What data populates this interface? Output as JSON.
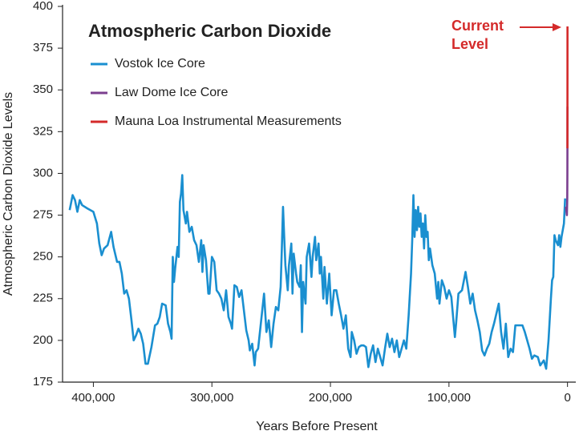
{
  "chart_data": {
    "type": "line",
    "title": "Atmospheric Carbon Dioxide",
    "x_label": "Years Before Present",
    "y_label": "Atmospheric Carbon Dioxide Levels",
    "annotation": [
      "Current",
      "Level"
    ],
    "annotation_color": "#d42a2a",
    "xlim": [
      426000,
      -7000
    ],
    "ylim": [
      175,
      400
    ],
    "xticks": [
      {
        "value": 400000,
        "label": "400,000"
      },
      {
        "value": 300000,
        "label": "300,000"
      },
      {
        "value": 200000,
        "label": "200,000"
      },
      {
        "value": 100000,
        "label": "100,000"
      },
      0
    ],
    "yticks": [
      175,
      200,
      225,
      250,
      275,
      300,
      325,
      350,
      375,
      400
    ],
    "grid": false,
    "legend": "upper left",
    "series": [
      {
        "name": "Vostok Ice Core",
        "color": "#1a8fd0",
        "x": [
          420000,
          417500,
          415500,
          413500,
          411500,
          409500,
          405000,
          400000,
          397000,
          395000,
          393000,
          391000,
          388000,
          385000,
          383000,
          380000,
          378000,
          376000,
          374000,
          372000,
          370000,
          368000,
          366000,
          364000,
          362000,
          360000,
          358000,
          356000,
          354000,
          351000,
          348000,
          346000,
          344000,
          342000,
          339000,
          337000,
          335000,
          334000,
          333000,
          332000,
          331000,
          329000,
          328000,
          327000,
          326000,
          325000,
          324000,
          322000,
          321000,
          319000,
          317000,
          315000,
          313000,
          311000,
          309000,
          308000,
          307000,
          305000,
          303000,
          302000,
          300000,
          298000,
          296000,
          294000,
          292000,
          290000,
          288000,
          286000,
          284000,
          283000,
          281000,
          279000,
          277000,
          275000,
          273000,
          271000,
          269000,
          268000,
          266000,
          264000,
          263000,
          261000,
          256000,
          254000,
          252000,
          250000,
          248000,
          246000,
          244000,
          242000,
          241000,
          240000,
          239000,
          238000,
          236000,
          235000,
          233000,
          232000,
          231000,
          229000,
          228000,
          226000,
          225000,
          224000,
          223000,
          221000,
          220000,
          218000,
          216000,
          215000,
          213000,
          212000,
          210000,
          209000,
          208000,
          206000,
          205000,
          203000,
          201000,
          199000,
          197000,
          195000,
          193000,
          191000,
          189000,
          187000,
          185000,
          183000,
          182000,
          180000,
          178000,
          176000,
          174000,
          172000,
          170000,
          168000,
          166000,
          164000,
          162000,
          160000,
          158000,
          156000,
          154000,
          152000,
          150000,
          148000,
          146000,
          144000,
          142000,
          140000,
          138000,
          136000,
          134000,
          132000,
          131000,
          130000,
          129000,
          128000,
          127000,
          126000,
          125000,
          124000,
          123000,
          122000,
          121000,
          120000,
          119000,
          118000,
          117000,
          116000,
          114000,
          112000,
          110000,
          109000,
          108000,
          106000,
          104000,
          102000,
          100000,
          98000,
          96000,
          95000,
          94000,
          92000,
          89000,
          86000,
          84000,
          82000,
          80000,
          78000,
          76000,
          74000,
          72000,
          70000,
          68000,
          66000,
          64000,
          62000,
          58000,
          56000,
          54000,
          52000,
          50000,
          48000,
          46000,
          44000,
          41000,
          38000,
          36000,
          34000,
          32000,
          30000,
          28000,
          25000,
          23000,
          20000,
          18000,
          16000,
          14000,
          13000,
          12000,
          11000,
          10000,
          8000,
          7000,
          6000,
          5000,
          4000,
          3000,
          2000
        ],
        "values": [
          278,
          287,
          284,
          277,
          284,
          281,
          279,
          277,
          270,
          258,
          251,
          255,
          257,
          265,
          256,
          247,
          247,
          240,
          228,
          230,
          225,
          213,
          200,
          203,
          207,
          204,
          198,
          186,
          186,
          196,
          209,
          210,
          214,
          222,
          221,
          210,
          205,
          201,
          250,
          235,
          243,
          256,
          250,
          283,
          288,
          299,
          278,
          270,
          277,
          265,
          268,
          260,
          257,
          247,
          260,
          241,
          257,
          248,
          228,
          228,
          250,
          247,
          230,
          228,
          225,
          218,
          230,
          214,
          210,
          207,
          233,
          232,
          226,
          230,
          218,
          206,
          200,
          194,
          198,
          185,
          193,
          195,
          228,
          205,
          212,
          196,
          210,
          220,
          218,
          232,
          255,
          280,
          262,
          245,
          230,
          245,
          258,
          228,
          252,
          240,
          235,
          232,
          245,
          205,
          235,
          222,
          250,
          258,
          238,
          250,
          262,
          248,
          258,
          240,
          250,
          225,
          244,
          222,
          240,
          215,
          230,
          230,
          222,
          215,
          207,
          215,
          195,
          190,
          205,
          200,
          192,
          196,
          197,
          197,
          196,
          184,
          192,
          197,
          187,
          195,
          190,
          185,
          195,
          204,
          196,
          201,
          193,
          200,
          190,
          195,
          200,
          195,
          215,
          240,
          260,
          287,
          262,
          278,
          266,
          280,
          268,
          276,
          262,
          270,
          255,
          275,
          262,
          265,
          248,
          255,
          245,
          240,
          225,
          235,
          222,
          236,
          232,
          225,
          230,
          226,
          210,
          202,
          210,
          228,
          230,
          241,
          232,
          222,
          228,
          218,
          212,
          205,
          194,
          191,
          195,
          198,
          205,
          210,
          222,
          205,
          195,
          210,
          190,
          195,
          193,
          209,
          209,
          209,
          205,
          200,
          195,
          189,
          191,
          190,
          185,
          188,
          183,
          200,
          225,
          236,
          238,
          263,
          260,
          257,
          263,
          256,
          262,
          266,
          270,
          285
        ]
      },
      {
        "name": "Law Dome Ice Core",
        "color": "#7b3f8f",
        "x": [
          1500,
          1000,
          500,
          200,
          100,
          50,
          20,
          0
        ],
        "values": [
          280,
          278,
          275,
          285,
          300,
          315,
          330,
          340
        ]
      },
      {
        "name": "Mauna Loa Instrumental Measurements",
        "color": "#d42a2a",
        "x": [
          60,
          40,
          20,
          0
        ],
        "values": [
          315,
          330,
          355,
          388
        ]
      }
    ]
  }
}
